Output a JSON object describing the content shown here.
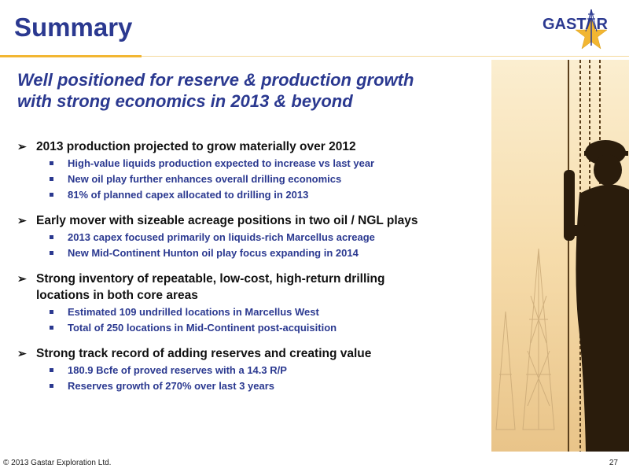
{
  "header": {
    "title": "Summary",
    "logo_text": "GASTAR"
  },
  "subtitle": {
    "line1": "Well positioned for reserve & production growth",
    "line2": "with strong economics in 2013 & beyond"
  },
  "bullets": [
    {
      "lines": [
        "2013 production projected to grow materially over 2012"
      ],
      "subs": [
        "High-value liquids production expected to increase vs last year",
        "New oil play further enhances overall drilling economics",
        "81% of planned capex allocated to drilling in 2013"
      ]
    },
    {
      "lines": [
        "Early mover with sizeable acreage positions in two oil / NGL plays"
      ],
      "subs": [
        "2013 capex focused primarily on liquids-rich Marcellus acreage",
        "New Mid-Continent Hunton oil play focus expanding in 2014"
      ]
    },
    {
      "lines": [
        "Strong inventory of repeatable, low-cost, high-return drilling",
        "locations in both core areas"
      ],
      "subs": [
        "Estimated 109 undrilled locations in Marcellus West",
        "Total of 250 locations in Mid-Continent post-acquisition"
      ]
    },
    {
      "lines": [
        "Strong track record of adding reserves and creating value"
      ],
      "subs": [
        "180.9 Bcfe of proved reserves with a 14.3 R/P",
        "Reserves growth of 270% over last 3 years"
      ]
    }
  ],
  "footer": {
    "copyright": "© 2013 Gastar Exploration Ltd.",
    "page_number": "27"
  },
  "colors": {
    "title_blue": "#2b3990",
    "accent_gold": "#f2b632",
    "photo_bg": "#f3d9a8"
  },
  "icons": {
    "bullet": "arrow-bullet-icon",
    "sub_bullet": "square-bullet-icon",
    "logo": "gastar-star-logo"
  }
}
